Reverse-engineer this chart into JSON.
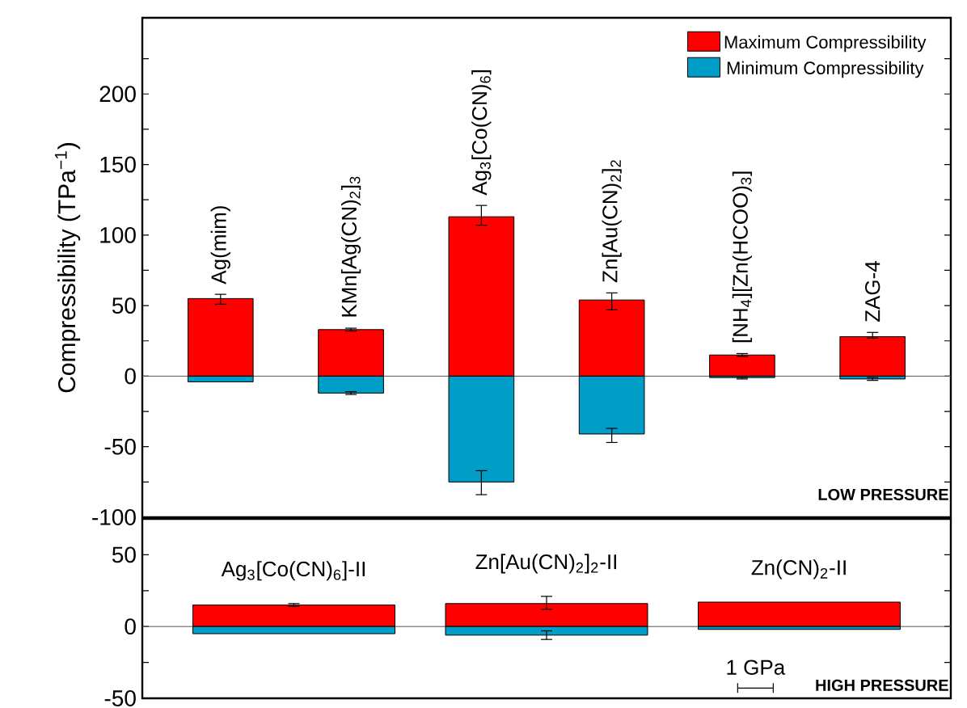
{
  "chart_data": [
    {
      "type": "bar",
      "stacked": true,
      "ylabel": "Compressibility (TPa$^{−1}$)",
      "categories": [
        "Ag(mim)",
        "KMn[Ag(CN)$_{2}$]$_{3}$",
        "Ag$_{3}$[Co(CN)$_{6}$]",
        "Zn[Au(CN)$_{2}$]$_{2}$",
        "[NH$_{4}$][Zn(HCOO)$_{3}$]",
        "ZAG-4"
      ],
      "series": [
        {
          "name": "Maximum Compressibility",
          "color": "#ff0000",
          "values": [
            55,
            33,
            113,
            54,
            15,
            28
          ],
          "errors": [
            [
              51,
              58
            ],
            [
              32,
              34
            ],
            [
              107,
              121
            ],
            [
              47,
              59
            ],
            [
              14,
              16
            ],
            [
              27,
              31
            ]
          ]
        },
        {
          "name": "Minimum Compressibility",
          "color": "#009ec6",
          "values": [
            -4,
            -12,
            -75,
            -41,
            -1,
            -2
          ],
          "errors": [
            null,
            [
              -13,
              -11
            ],
            [
              -84,
              -67
            ],
            [
              -47,
              -37
            ],
            [
              -2,
              -1
            ],
            [
              -3,
              -1
            ]
          ]
        }
      ],
      "ylim": [
        -100,
        254
      ],
      "yticks": [
        -100,
        {
          "value": -75,
          "label": null
        },
        -50,
        {
          "value": -25,
          "label": null
        },
        0,
        {
          "value": 25,
          "label": null
        },
        50,
        {
          "value": 75,
          "label": null
        },
        100,
        {
          "value": 125,
          "label": null
        },
        150,
        {
          "value": 175,
          "label": null
        },
        200,
        {
          "value": 225,
          "label": null
        }
      ],
      "tick_labels": "y",
      "legend": "top right",
      "ref_lines": [
        {
          "axis": "y",
          "value": 0,
          "color": "#555555"
        }
      ],
      "annotations": [
        "LOW PRESSURE"
      ]
    },
    {
      "type": "bar",
      "stacked": true,
      "categories": [
        "Ag$_{3}$[Co(CN)$_{6}$]-II",
        "Zn[Au(CN)$_{2}$]$_{2}$-II",
        "Zn(CN)$_{2}$-II"
      ],
      "series": [
        {
          "color": "#ff0000",
          "values": [
            15,
            16,
            17
          ],
          "errors": [
            [
              14,
              16
            ],
            [
              12,
              21
            ],
            null
          ]
        },
        {
          "color": "#009ec6",
          "values": [
            -5,
            -6,
            -2
          ],
          "errors": [
            null,
            [
              -9,
              -3
            ],
            null
          ]
        }
      ],
      "ylim": [
        -50,
        75
      ],
      "yticks": [
        -50,
        {
          "value": -25,
          "label": null
        },
        0,
        {
          "value": 25,
          "label": null
        },
        50
      ],
      "tick_labels": "y",
      "ref_lines": [
        {
          "axis": "y",
          "value": 0,
          "color": "#555555"
        }
      ],
      "annotations": [
        "1 GPa",
        "HIGH PRESSURE"
      ]
    }
  ]
}
